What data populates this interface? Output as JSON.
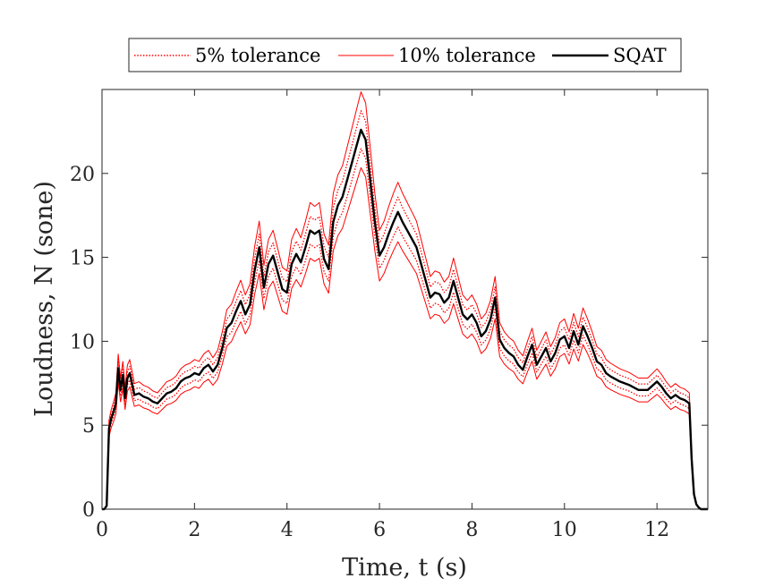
{
  "chart_data": {
    "type": "line",
    "xlabel": "Time, t (s)",
    "ylabel": "Loudness, N (sone)",
    "xlim": [
      0,
      13.1
    ],
    "ylim": [
      0,
      25
    ],
    "xticks": [
      0,
      2,
      4,
      6,
      8,
      10,
      12
    ],
    "yticks": [
      0,
      5,
      10,
      15,
      20
    ],
    "grid": false,
    "legend": {
      "placement": "top-outside",
      "orientation": "horizontal"
    },
    "colors": {
      "tolerance": "#ff0000",
      "sqat": "#000000",
      "axis": "#262626"
    },
    "x": [
      0,
      0.05,
      0.1,
      0.15,
      0.2,
      0.25,
      0.3,
      0.35,
      0.4,
      0.45,
      0.5,
      0.55,
      0.6,
      0.7,
      0.8,
      0.9,
      1.0,
      1.1,
      1.2,
      1.3,
      1.4,
      1.5,
      1.6,
      1.7,
      1.8,
      1.9,
      2.0,
      2.1,
      2.2,
      2.3,
      2.4,
      2.5,
      2.6,
      2.7,
      2.8,
      2.9,
      3.0,
      3.1,
      3.2,
      3.3,
      3.4,
      3.5,
      3.6,
      3.7,
      3.8,
      3.9,
      4.0,
      4.1,
      4.2,
      4.3,
      4.4,
      4.5,
      4.6,
      4.7,
      4.8,
      4.9,
      5.0,
      5.1,
      5.2,
      5.3,
      5.4,
      5.5,
      5.6,
      5.7,
      5.8,
      5.9,
      6.0,
      6.1,
      6.2,
      6.3,
      6.4,
      6.5,
      6.6,
      6.7,
      6.8,
      6.9,
      7.0,
      7.1,
      7.2,
      7.3,
      7.4,
      7.5,
      7.6,
      7.7,
      7.8,
      7.9,
      8.0,
      8.1,
      8.2,
      8.3,
      8.4,
      8.5,
      8.6,
      8.7,
      8.8,
      8.9,
      9.0,
      9.1,
      9.2,
      9.3,
      9.4,
      9.5,
      9.6,
      9.7,
      9.8,
      9.9,
      10.0,
      10.1,
      10.2,
      10.3,
      10.4,
      10.5,
      10.6,
      10.7,
      10.8,
      10.9,
      11.0,
      11.2,
      11.4,
      11.6,
      11.8,
      12.0,
      12.1,
      12.2,
      12.3,
      12.4,
      12.5,
      12.6,
      12.7,
      12.75,
      12.8,
      12.85,
      12.9,
      12.95,
      13.0,
      13.1
    ],
    "series": [
      {
        "name": "SQAT",
        "values": [
          0,
          0,
          0.2,
          4.8,
          5.4,
          5.8,
          6.3,
          8.4,
          7.1,
          8.0,
          6.6,
          7.8,
          8.1,
          6.8,
          6.9,
          6.7,
          6.6,
          6.4,
          6.3,
          6.6,
          6.9,
          7.0,
          7.2,
          7.6,
          7.8,
          7.9,
          8.1,
          8.0,
          8.4,
          8.6,
          8.2,
          8.6,
          9.6,
          10.8,
          11.1,
          11.8,
          12.4,
          11.6,
          12.2,
          14.2,
          15.6,
          13.2,
          14.6,
          15.1,
          14.1,
          13.1,
          12.9,
          14.6,
          15.2,
          14.7,
          15.6,
          16.6,
          16.4,
          16.6,
          14.9,
          14.3,
          17.1,
          18.1,
          18.6,
          19.6,
          20.6,
          21.6,
          22.6,
          22.0,
          19.6,
          17.1,
          15.1,
          15.6,
          16.4,
          17.1,
          17.7,
          17.1,
          16.6,
          16.1,
          15.6,
          14.6,
          13.6,
          12.6,
          12.9,
          12.8,
          12.3,
          12.6,
          13.6,
          12.6,
          11.6,
          11.3,
          11.6,
          11.1,
          10.3,
          10.6,
          11.3,
          12.6,
          10.1,
          9.6,
          9.3,
          9.1,
          8.6,
          8.3,
          9.1,
          9.8,
          8.6,
          9.1,
          9.6,
          8.8,
          9.3,
          10.1,
          10.3,
          9.6,
          10.6,
          9.8,
          10.9,
          10.3,
          9.6,
          8.8,
          8.6,
          8.1,
          7.9,
          7.6,
          7.4,
          7.1,
          7.1,
          7.6,
          7.3,
          6.9,
          6.6,
          6.8,
          6.6,
          6.5,
          6.3,
          3.0,
          0.9,
          0.3,
          0.1,
          0,
          0,
          0
        ]
      },
      {
        "name": "5% tolerance",
        "factor": 1.05
      },
      {
        "name": "5% tolerance",
        "factor": 0.95
      },
      {
        "name": "10% tolerance",
        "factor": 1.1
      },
      {
        "name": "10% tolerance",
        "factor": 0.9
      }
    ]
  },
  "legend": {
    "items": [
      {
        "label": "5% tolerance",
        "style": "dotted",
        "color": "#ff0000"
      },
      {
        "label": "10% tolerance",
        "style": "solid-thin",
        "color": "#ff0000"
      },
      {
        "label": "SQAT",
        "style": "solid-thick",
        "color": "#000000"
      }
    ]
  }
}
